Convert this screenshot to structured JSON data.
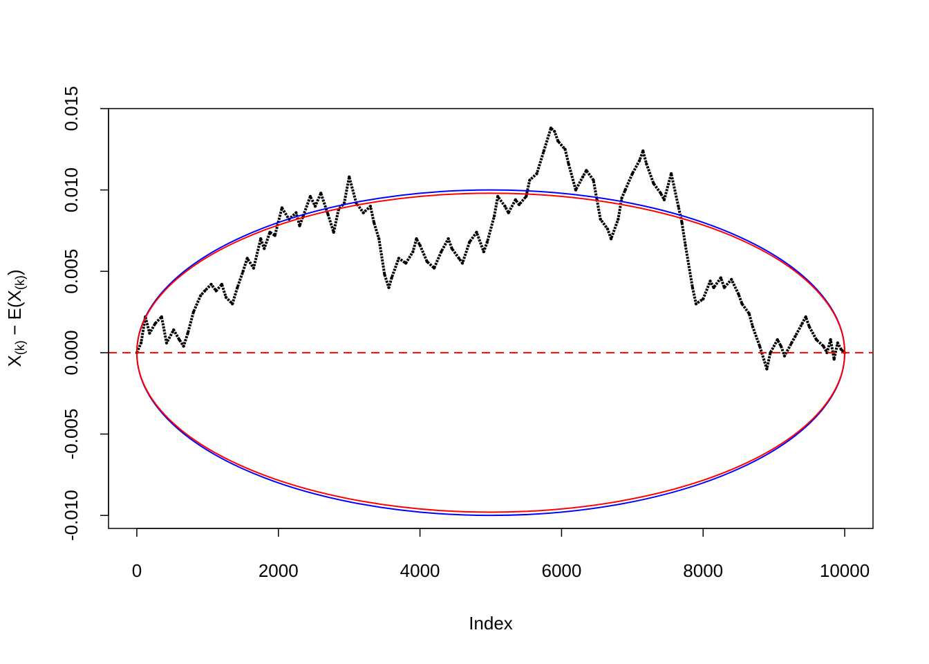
{
  "chart_data": {
    "type": "line",
    "title": "",
    "xlabel": "Index",
    "ylabel": {
      "parts": [
        {
          "text": "X",
          "sub": false
        },
        {
          "text": "(k)",
          "sub": true
        },
        {
          "text": " − E(X",
          "sub": false
        },
        {
          "text": "(k)",
          "sub": true
        },
        {
          "text": ")",
          "sub": false
        }
      ]
    },
    "xlim": [
      -400,
      10400
    ],
    "ylim": [
      -0.0108,
      0.015
    ],
    "x_ticks": [
      0,
      2000,
      4000,
      6000,
      8000,
      10000
    ],
    "x_tick_labels": [
      "0",
      "2000",
      "4000",
      "6000",
      "8000",
      "10000"
    ],
    "y_ticks": [
      -0.01,
      -0.005,
      0.0,
      0.005,
      0.01,
      0.015
    ],
    "y_tick_labels": [
      "-0.010",
      "-0.005",
      "0.000",
      "0.005",
      "0.010",
      "0.015"
    ],
    "grid": false,
    "legend": null,
    "series": [
      {
        "kind": "points",
        "color": "#000000",
        "x": [
          0,
          60,
          120,
          180,
          260,
          350,
          420,
          520,
          600,
          660,
          720,
          800,
          900,
          960,
          1050,
          1120,
          1200,
          1260,
          1350,
          1420,
          1500,
          1560,
          1650,
          1750,
          1800,
          1880,
          1950,
          2050,
          2150,
          2250,
          2300,
          2350,
          2450,
          2520,
          2600,
          2700,
          2780,
          2850,
          2930,
          3000,
          3100,
          3200,
          3300,
          3350,
          3420,
          3500,
          3560,
          3600,
          3700,
          3800,
          3900,
          3950,
          4000,
          4100,
          4200,
          4300,
          4400,
          4450,
          4550,
          4600,
          4700,
          4800,
          4900,
          4950,
          5050,
          5100,
          5200,
          5250,
          5350,
          5400,
          5500,
          5550,
          5650,
          5750,
          5850,
          5900,
          5950,
          6050,
          6100,
          6200,
          6300,
          6350,
          6450,
          6500,
          6550,
          6650,
          6700,
          6800,
          6850,
          6900,
          7000,
          7100,
          7150,
          7200,
          7300,
          7400,
          7450,
          7550,
          7650,
          7700,
          7750,
          7850,
          7900,
          8000,
          8100,
          8150,
          8250,
          8300,
          8400,
          8500,
          8550,
          8650,
          8700,
          8800,
          8900,
          8950,
          9050,
          9100,
          9150,
          9250,
          9300,
          9400,
          9450,
          9500,
          9600,
          9700,
          9750,
          9800,
          9850,
          9900,
          9950,
          10000
        ],
        "y": [
          0.0,
          0.0006,
          0.0022,
          0.0012,
          0.0018,
          0.0022,
          0.0006,
          0.0014,
          0.0008,
          0.0004,
          0.0012,
          0.0025,
          0.0035,
          0.0038,
          0.0042,
          0.0038,
          0.0042,
          0.0034,
          0.003,
          0.004,
          0.005,
          0.0058,
          0.0052,
          0.007,
          0.0064,
          0.0074,
          0.0072,
          0.0089,
          0.0082,
          0.0086,
          0.0078,
          0.0084,
          0.0096,
          0.009,
          0.0098,
          0.0085,
          0.0074,
          0.0088,
          0.0092,
          0.0108,
          0.0092,
          0.0086,
          0.009,
          0.008,
          0.007,
          0.0048,
          0.004,
          0.0046,
          0.0058,
          0.0055,
          0.0062,
          0.007,
          0.0066,
          0.0056,
          0.0052,
          0.0062,
          0.007,
          0.0064,
          0.0058,
          0.0055,
          0.0068,
          0.0074,
          0.0062,
          0.0068,
          0.0084,
          0.0096,
          0.009,
          0.0086,
          0.0094,
          0.0091,
          0.0096,
          0.0106,
          0.011,
          0.0124,
          0.0138,
          0.0136,
          0.013,
          0.0125,
          0.0116,
          0.01,
          0.0108,
          0.0112,
          0.0106,
          0.0094,
          0.0082,
          0.0076,
          0.007,
          0.0082,
          0.0095,
          0.01,
          0.011,
          0.0118,
          0.0124,
          0.0116,
          0.0104,
          0.0098,
          0.0094,
          0.011,
          0.009,
          0.008,
          0.0066,
          0.004,
          0.003,
          0.0033,
          0.0044,
          0.004,
          0.0046,
          0.004,
          0.0045,
          0.0036,
          0.003,
          0.0024,
          0.0016,
          0.0004,
          -0.001,
          0.0,
          0.0008,
          0.0004,
          -0.0002,
          0.0006,
          0.001,
          0.0018,
          0.0022,
          0.0016,
          0.0008,
          0.0004,
          0.0,
          0.0008,
          -0.0004,
          0.0006,
          0.0002,
          0.0
        ]
      },
      {
        "kind": "ellipse",
        "color": "#0000ff",
        "center_x": 5000,
        "x_half_width": 5000,
        "y_half_height": 0.01
      },
      {
        "kind": "ellipse",
        "color": "#ff0000",
        "center_x": 5000,
        "x_half_width": 5000,
        "y_half_height": 0.0098
      },
      {
        "kind": "hline",
        "color": "#ff0000",
        "style": "dashed",
        "y": 0.0
      }
    ]
  }
}
